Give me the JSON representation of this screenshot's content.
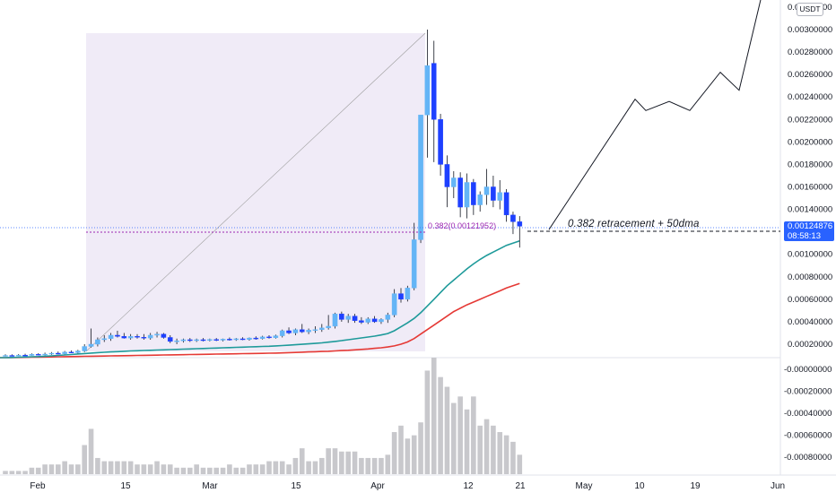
{
  "chart_data": {
    "type": "candlestick",
    "currency": "USDT",
    "last_price_label": "0.00124876",
    "countdown_label": "08:58:13",
    "price_axis_ticks": [
      "0.00300000",
      "0.00280000",
      "0.00260000",
      "0.00240000",
      "0.00220000",
      "0.00200000",
      "0.00180000",
      "0.00160000",
      "0.00140000",
      "0.00120000",
      "0.00100000",
      "0.00080000",
      "0.00060000",
      "0.00040000",
      "0.00020000"
    ],
    "volume_axis_ticks": [
      "-0.00000000",
      "-0.00020000",
      "-0.00040000",
      "-0.00060000",
      "-0.00080000"
    ],
    "top_axis_label_partial": "0.00",
    "top_axis_label_tail": "00",
    "time_axis_labels": [
      "Feb",
      "15",
      "Mar",
      "15",
      "Apr",
      "12",
      "21",
      "May",
      "10",
      "19",
      "Jun"
    ],
    "annotation": "0.382 retracement + 50dma",
    "fib_label": "0.382(0.00121952)",
    "fib_level": 0.00121952,
    "last_price": 0.00124876,
    "candles": [
      {
        "o": 9.5e-05,
        "h": 0.00011,
        "l": 9e-05,
        "c": 0.0001
      },
      {
        "o": 0.0001,
        "h": 0.00011,
        "l": 9.5e-05,
        "c": 9.8e-05
      },
      {
        "o": 9.8e-05,
        "h": 0.000112,
        "l": 9.4e-05,
        "c": 0.000103
      },
      {
        "o": 0.000103,
        "h": 0.000115,
        "l": 9.6e-05,
        "c": 0.0001
      },
      {
        "o": 0.0001,
        "h": 0.000118,
        "l": 9.7e-05,
        "c": 0.00011
      },
      {
        "o": 0.00011,
        "h": 0.00012,
        "l": 0.0001,
        "c": 0.000105
      },
      {
        "o": 0.000105,
        "h": 0.000125,
        "l": 0.0001,
        "c": 0.000112
      },
      {
        "o": 0.000112,
        "h": 0.00013,
        "l": 0.000105,
        "c": 0.00012
      },
      {
        "o": 0.00012,
        "h": 0.000135,
        "l": 0.00011,
        "c": 0.000115
      },
      {
        "o": 0.000115,
        "h": 0.00014,
        "l": 0.00011,
        "c": 0.00013
      },
      {
        "o": 0.00013,
        "h": 0.000145,
        "l": 0.00012,
        "c": 0.000125
      },
      {
        "o": 0.000125,
        "h": 0.00015,
        "l": 0.000118,
        "c": 0.00014
      },
      {
        "o": 0.00014,
        "h": 0.0002,
        "l": 0.00013,
        "c": 0.00018
      },
      {
        "o": 0.00018,
        "h": 0.00034,
        "l": 0.00017,
        "c": 0.0002
      },
      {
        "o": 0.0002,
        "h": 0.00026,
        "l": 0.00018,
        "c": 0.00024
      },
      {
        "o": 0.00024,
        "h": 0.00028,
        "l": 0.00022,
        "c": 0.00025
      },
      {
        "o": 0.00025,
        "h": 0.0003,
        "l": 0.00023,
        "c": 0.00028
      },
      {
        "o": 0.00028,
        "h": 0.00032,
        "l": 0.00026,
        "c": 0.00027
      },
      {
        "o": 0.00027,
        "h": 0.0003,
        "l": 0.00025,
        "c": 0.000255
      },
      {
        "o": 0.000255,
        "h": 0.00029,
        "l": 0.00024,
        "c": 0.00027
      },
      {
        "o": 0.00027,
        "h": 0.00029,
        "l": 0.00025,
        "c": 0.000262
      },
      {
        "o": 0.000262,
        "h": 0.00029,
        "l": 0.00024,
        "c": 0.000255
      },
      {
        "o": 0.000255,
        "h": 0.0003,
        "l": 0.00024,
        "c": 0.00028
      },
      {
        "o": 0.00028,
        "h": 0.00031,
        "l": 0.00026,
        "c": 0.00029
      },
      {
        "o": 0.00029,
        "h": 0.0003,
        "l": 0.00025,
        "c": 0.00026
      },
      {
        "o": 0.00026,
        "h": 0.00028,
        "l": 0.00021,
        "c": 0.000225
      },
      {
        "o": 0.000225,
        "h": 0.00025,
        "l": 0.0002,
        "c": 0.00023
      },
      {
        "o": 0.00023,
        "h": 0.00025,
        "l": 0.000215,
        "c": 0.00024
      },
      {
        "o": 0.00024,
        "h": 0.000255,
        "l": 0.00022,
        "c": 0.000235
      },
      {
        "o": 0.000235,
        "h": 0.00025,
        "l": 0.00022,
        "c": 0.00024
      },
      {
        "o": 0.00024,
        "h": 0.000255,
        "l": 0.000225,
        "c": 0.000235
      },
      {
        "o": 0.000235,
        "h": 0.00025,
        "l": 0.000225,
        "c": 0.000242
      },
      {
        "o": 0.000242,
        "h": 0.000255,
        "l": 0.000228,
        "c": 0.000236
      },
      {
        "o": 0.000236,
        "h": 0.00025,
        "l": 0.000225,
        "c": 0.000245
      },
      {
        "o": 0.000245,
        "h": 0.00026,
        "l": 0.000232,
        "c": 0.00024
      },
      {
        "o": 0.00024,
        "h": 0.000255,
        "l": 0.00023,
        "c": 0.000248
      },
      {
        "o": 0.000248,
        "h": 0.000262,
        "l": 0.000236,
        "c": 0.000242
      },
      {
        "o": 0.000242,
        "h": 0.00026,
        "l": 0.000232,
        "c": 0.000255
      },
      {
        "o": 0.000255,
        "h": 0.00027,
        "l": 0.00024,
        "c": 0.00025
      },
      {
        "o": 0.00025,
        "h": 0.000275,
        "l": 0.000242,
        "c": 0.000265
      },
      {
        "o": 0.000265,
        "h": 0.00028,
        "l": 0.00025,
        "c": 0.000258
      },
      {
        "o": 0.000258,
        "h": 0.000285,
        "l": 0.00025,
        "c": 0.000275
      },
      {
        "o": 0.000275,
        "h": 0.00033,
        "l": 0.00026,
        "c": 0.00032
      },
      {
        "o": 0.00032,
        "h": 0.00035,
        "l": 0.00029,
        "c": 0.0003
      },
      {
        "o": 0.0003,
        "h": 0.00034,
        "l": 0.00028,
        "c": 0.00033
      },
      {
        "o": 0.00033,
        "h": 0.00038,
        "l": 0.0003,
        "c": 0.00031
      },
      {
        "o": 0.00031,
        "h": 0.00034,
        "l": 0.00029,
        "c": 0.000325
      },
      {
        "o": 0.000325,
        "h": 0.00036,
        "l": 0.0003,
        "c": 0.00033
      },
      {
        "o": 0.00033,
        "h": 0.00038,
        "l": 0.00031,
        "c": 0.000345
      },
      {
        "o": 0.000345,
        "h": 0.00046,
        "l": 0.00033,
        "c": 0.00036
      },
      {
        "o": 0.00036,
        "h": 0.00048,
        "l": 0.00034,
        "c": 0.00047
      },
      {
        "o": 0.00047,
        "h": 0.00049,
        "l": 0.0004,
        "c": 0.00042
      },
      {
        "o": 0.00042,
        "h": 0.00047,
        "l": 0.00039,
        "c": 0.00045
      },
      {
        "o": 0.00045,
        "h": 0.00047,
        "l": 0.00039,
        "c": 0.00041
      },
      {
        "o": 0.00041,
        "h": 0.00044,
        "l": 0.00038,
        "c": 0.000395
      },
      {
        "o": 0.000395,
        "h": 0.00044,
        "l": 0.00038,
        "c": 0.000425
      },
      {
        "o": 0.000425,
        "h": 0.00045,
        "l": 0.00039,
        "c": 0.0004
      },
      {
        "o": 0.0004,
        "h": 0.00043,
        "l": 0.00038,
        "c": 0.00042
      },
      {
        "o": 0.00042,
        "h": 0.00048,
        "l": 0.00039,
        "c": 0.00046
      },
      {
        "o": 0.00046,
        "h": 0.00069,
        "l": 0.00044,
        "c": 0.00065
      },
      {
        "o": 0.00065,
        "h": 0.0007,
        "l": 0.00057,
        "c": 0.0006
      },
      {
        "o": 0.0006,
        "h": 0.00072,
        "l": 0.00058,
        "c": 0.0007
      },
      {
        "o": 0.0007,
        "h": 0.00128,
        "l": 0.00068,
        "c": 0.00113
      },
      {
        "o": 0.00113,
        "h": 0.00224,
        "l": 0.0011,
        "c": 0.00224
      },
      {
        "o": 0.00224,
        "h": 0.003,
        "l": 0.00186,
        "c": 0.00268
      },
      {
        "o": 0.0027,
        "h": 0.0029,
        "l": 0.00182,
        "c": 0.0022
      },
      {
        "o": 0.0022,
        "h": 0.00225,
        "l": 0.0017,
        "c": 0.0018
      },
      {
        "o": 0.0018,
        "h": 0.00188,
        "l": 0.00142,
        "c": 0.0016
      },
      {
        "o": 0.0016,
        "h": 0.00174,
        "l": 0.0015,
        "c": 0.00168
      },
      {
        "o": 0.00168,
        "h": 0.00173,
        "l": 0.00133,
        "c": 0.00142
      },
      {
        "o": 0.00142,
        "h": 0.00172,
        "l": 0.00132,
        "c": 0.00164
      },
      {
        "o": 0.00164,
        "h": 0.00167,
        "l": 0.00135,
        "c": 0.00144
      },
      {
        "o": 0.00144,
        "h": 0.00156,
        "l": 0.00138,
        "c": 0.00153
      },
      {
        "o": 0.00153,
        "h": 0.00176,
        "l": 0.00144,
        "c": 0.0016
      },
      {
        "o": 0.0016,
        "h": 0.0017,
        "l": 0.00142,
        "c": 0.00148
      },
      {
        "o": 0.00148,
        "h": 0.00166,
        "l": 0.0014,
        "c": 0.00155
      },
      {
        "o": 0.00155,
        "h": 0.00158,
        "l": 0.00129,
        "c": 0.00135
      },
      {
        "o": 0.00135,
        "h": 0.00138,
        "l": 0.00118,
        "c": 0.00129
      },
      {
        "o": 0.00129,
        "h": 0.00134,
        "l": 0.00106,
        "c": 0.00125
      }
    ],
    "volume": [
      1,
      1,
      1,
      1,
      2,
      2,
      3,
      3,
      3,
      4,
      3,
      3,
      9,
      14,
      5,
      4,
      4,
      4,
      4,
      4,
      3,
      3,
      3,
      4,
      3,
      3,
      2,
      2,
      2,
      3,
      2,
      2,
      2,
      2,
      3,
      2,
      2,
      3,
      3,
      3,
      4,
      4,
      4,
      3,
      5,
      8,
      4,
      4,
      5,
      8,
      8,
      7,
      7,
      7,
      5,
      5,
      5,
      5,
      6,
      13,
      15,
      11,
      12,
      16,
      32,
      36,
      30,
      27,
      22,
      24,
      20,
      24,
      15,
      17,
      15,
      13,
      12,
      10,
      6
    ],
    "ma50": [
      8e-05,
      8.2e-05,
      8.4e-05,
      8.6e-05,
      8.8e-05,
      9e-05,
      9.3e-05,
      9.6e-05,
      0.0001,
      0.000104,
      0.000108,
      0.000113,
      0.000117,
      0.000121,
      0.000125,
      0.000128,
      0.000131,
      0.000134,
      0.000137,
      0.00014,
      0.000142,
      0.000144,
      0.000146,
      0.000148,
      0.00015,
      0.000152,
      0.000154,
      0.000156,
      0.000158,
      0.00016,
      0.000162,
      0.000164,
      0.000166,
      0.000168,
      0.00017,
      0.000172,
      0.000174,
      0.000176,
      0.000178,
      0.00018,
      0.000182,
      0.000185,
      0.000188,
      0.000191,
      0.000195,
      0.000199,
      0.000203,
      0.000207,
      0.000212,
      0.000218,
      0.000225,
      0.000232,
      0.00024,
      0.000248,
      0.000256,
      0.000264,
      0.000272,
      0.000282,
      0.000295,
      0.00032,
      0.000355,
      0.00039,
      0.00043,
      0.00048,
      0.00054,
      0.0006,
      0.00066,
      0.00072,
      0.00077,
      0.00082,
      0.00087,
      0.000915,
      0.000955,
      0.00099,
      0.00102,
      0.00105,
      0.00108,
      0.0011,
      0.00112
    ],
    "ma100": [
      8e-05,
      8.1e-05,
      8.2e-05,
      8.3e-05,
      8.4e-05,
      8.5e-05,
      8.6e-05,
      8.7e-05,
      8.8e-05,
      8.9e-05,
      9e-05,
      9.1e-05,
      9.2e-05,
      9.3e-05,
      9.4e-05,
      9.5e-05,
      9.6e-05,
      9.7e-05,
      9.8e-05,
      9.9e-05,
      0.0001,
      0.000101,
      0.000102,
      0.000103,
      0.000104,
      0.000105,
      0.000106,
      0.000107,
      0.000108,
      0.000109,
      0.00011,
      0.000111,
      0.000112,
      0.000113,
      0.000114,
      0.000115,
      0.000116,
      0.000117,
      0.000118,
      0.000119,
      0.00012,
      0.000121,
      0.000123,
      0.000125,
      0.000127,
      0.000129,
      0.000131,
      0.000133,
      0.000135,
      0.000137,
      0.00014,
      0.000143,
      0.000146,
      0.00015,
      0.000154,
      0.000158,
      0.000163,
      0.000168,
      0.000175,
      0.000185,
      0.0002,
      0.00022,
      0.00025,
      0.00029,
      0.00033,
      0.00037,
      0.00041,
      0.00045,
      0.00049,
      0.00052,
      0.00055,
      0.000575,
      0.0006,
      0.000625,
      0.00065,
      0.000675,
      0.0007,
      0.00072,
      0.00074
    ],
    "projection_path": [
      {
        "date": "Apr 24",
        "price": 0.00122
      },
      {
        "date": "May 10",
        "price": 0.00238
      },
      {
        "date": "May 13",
        "price": 0.00228
      },
      {
        "date": "May 17",
        "price": 0.00236
      },
      {
        "date": "May 21",
        "price": 0.00228
      },
      {
        "date": "May 25",
        "price": 0.00262
      },
      {
        "date": "May 28",
        "price": 0.00246
      },
      {
        "date": "Jun 1",
        "price": 0.0034
      }
    ],
    "colors": {
      "up_candle": "#64b5f6",
      "down_candle": "#1e40ff",
      "ma50": "#1e9a9a",
      "ma100": "#e53935",
      "volume": "#c8c8cc",
      "range_fill": "#ede7f6",
      "price_tag": "#2962ff",
      "fib": "#9c27b0"
    }
  }
}
